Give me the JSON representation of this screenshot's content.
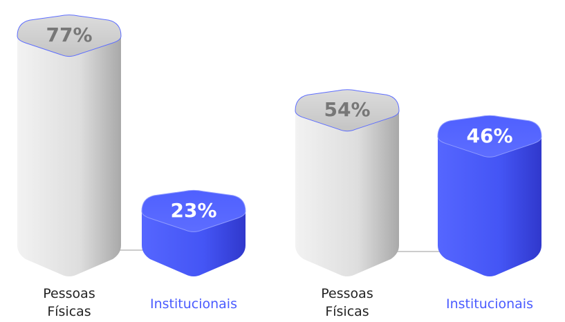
{
  "chart_data": [
    {
      "type": "bar",
      "categories": [
        "Pessoas Físicas",
        "Institucionais"
      ],
      "values": [
        77,
        23
      ],
      "value_labels": [
        "77%",
        "23%"
      ],
      "colors": [
        "#e4e4e4",
        "#4a5bff"
      ]
    },
    {
      "type": "bar",
      "categories": [
        "Pessoas Físicas",
        "Institucionais"
      ],
      "values": [
        54,
        46
      ],
      "value_labels": [
        "54%",
        "46%"
      ],
      "colors": [
        "#e4e4e4",
        "#4a5bff"
      ]
    }
  ]
}
